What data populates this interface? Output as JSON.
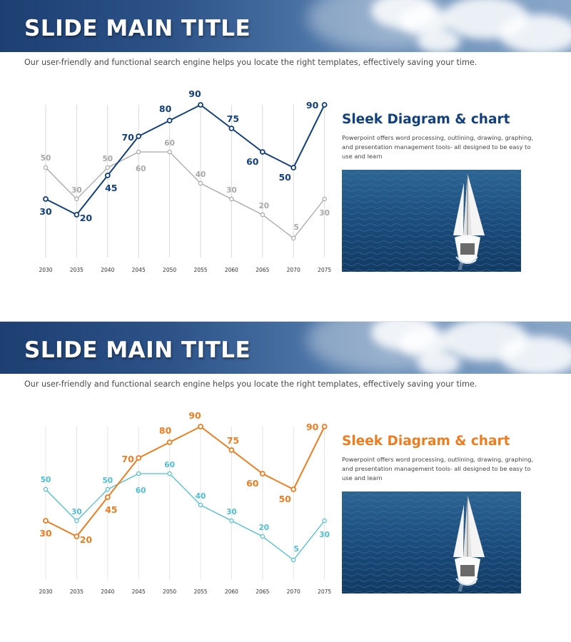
{
  "slides": [
    {
      "title": "SLIDE MAIN TITLE",
      "subtitle": "Our user-friendly and functional search engine helps you locate the right templates, effectively  saving your time.",
      "panel": {
        "heading": "Sleek Diagram & chart",
        "body": "Powerpoint offers word processing, outlining, drawing, graphing, and presentation management tools- all designed to be easy to use and learn",
        "image": "sailboat-on-ocean"
      },
      "colors": {
        "primary": "#123f7e",
        "secondary": "#a8a8a8",
        "grid": "#dadada"
      },
      "chart_data": {
        "type": "line",
        "x": [
          "2030",
          "2035",
          "2040",
          "2045",
          "2050",
          "2055",
          "2060",
          "2065",
          "2070",
          "2075"
        ],
        "series": [
          {
            "values": [
              30,
              20,
              45,
              70,
              80,
              90,
              75,
              60,
              50,
              90
            ]
          },
          {
            "values": [
              50,
              30,
              50,
              60,
              60,
              40,
              30,
              20,
              5,
              30
            ]
          }
        ],
        "ylim": [
          0,
          100
        ],
        "grid": "vertical"
      }
    },
    {
      "title": "SLIDE MAIN TITLE",
      "subtitle": "Our user-friendly and functional search engine helps you locate the right templates, effectively saving your time.",
      "panel": {
        "heading": "Sleek Diagram & chart",
        "body": "Powerpoint offers word processing, outlining, drawing, graphing, and presentation management tools- all designed to be easy to use and learn",
        "image": "sailboat-on-ocean"
      },
      "colors": {
        "primary": "#f07c20",
        "secondary": "#4dbfd3",
        "grid": "#e4e4e4"
      },
      "chart_data": {
        "type": "line",
        "x": [
          "2030",
          "2035",
          "2040",
          "2045",
          "2050",
          "2055",
          "2060",
          "2065",
          "2070",
          "2075"
        ],
        "series": [
          {
            "values": [
              30,
              20,
              45,
              70,
              80,
              90,
              75,
              60,
              50,
              90
            ]
          },
          {
            "values": [
              50,
              30,
              50,
              60,
              60,
              40,
              30,
              20,
              5,
              30
            ]
          }
        ],
        "ylim": [
          0,
          100
        ],
        "grid": "vertical"
      }
    }
  ]
}
